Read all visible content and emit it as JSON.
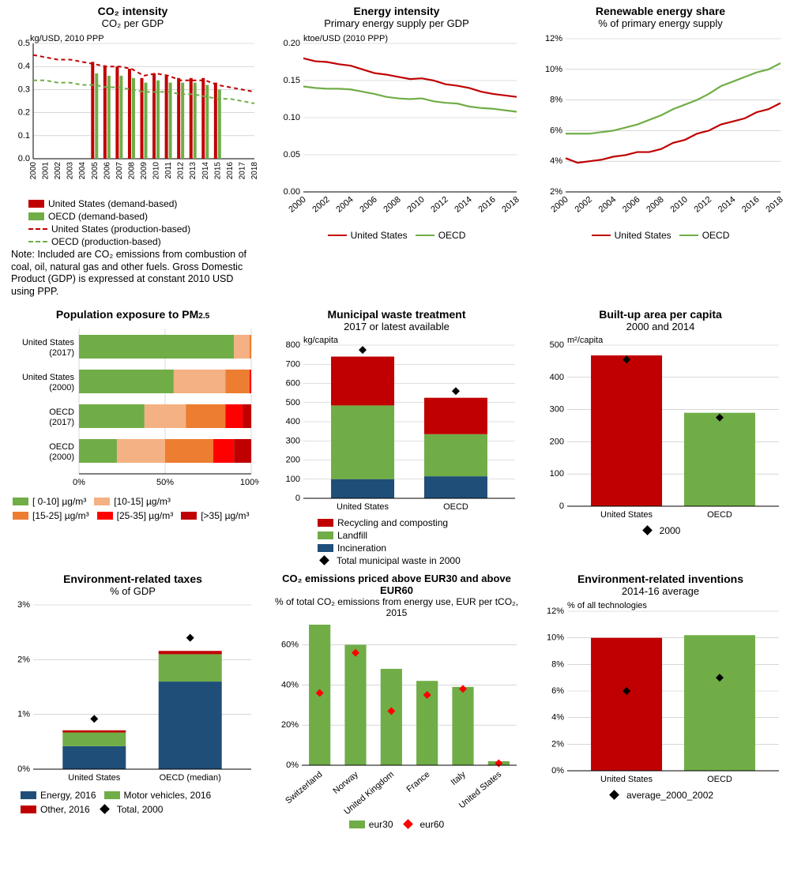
{
  "colors": {
    "us_red": "#c00000",
    "oecd_green": "#70ad47",
    "blue": "#1f4e79",
    "orange_l": "#f4b183",
    "orange_m": "#ed7d31",
    "orange_d": "#c55a11",
    "red_d": "#ff0000",
    "black": "#000000",
    "grid": "#bfbfbf",
    "bg": "#ffffff"
  },
  "years_2000_2018": [
    2000,
    2001,
    2002,
    2003,
    2004,
    2005,
    2006,
    2007,
    2008,
    2009,
    2010,
    2011,
    2012,
    2013,
    2014,
    2015,
    2016,
    2017,
    2018
  ],
  "years_even_2000_2018": [
    2000,
    2002,
    2004,
    2006,
    2008,
    2010,
    2012,
    2014,
    2016,
    2018
  ],
  "co2_intensity": {
    "title": "CO₂ intensity",
    "subtitle": "CO₂ per GDP",
    "yunit": "kg/USD, 2010 PPP",
    "ylim": [
      0,
      0.5
    ],
    "ytick_step": 0.1,
    "us_demand": [
      null,
      null,
      null,
      null,
      null,
      0.42,
      0.4,
      0.4,
      0.39,
      0.35,
      0.37,
      0.36,
      0.35,
      0.35,
      0.35,
      0.33,
      null,
      null,
      null
    ],
    "oecd_demand": [
      null,
      null,
      null,
      null,
      null,
      0.37,
      0.36,
      0.36,
      0.35,
      0.33,
      0.34,
      0.33,
      0.33,
      0.33,
      0.32,
      0.3,
      null,
      null,
      null
    ],
    "us_prod": [
      0.45,
      0.44,
      0.43,
      0.43,
      0.42,
      0.41,
      0.4,
      0.4,
      0.39,
      0.36,
      0.37,
      0.36,
      0.34,
      0.34,
      0.34,
      0.32,
      0.31,
      0.3,
      0.29
    ],
    "oecd_prod": [
      0.34,
      0.34,
      0.33,
      0.33,
      0.32,
      0.32,
      0.31,
      0.31,
      0.3,
      0.29,
      0.29,
      0.29,
      0.28,
      0.28,
      0.27,
      0.26,
      0.26,
      0.25,
      0.24
    ],
    "legend": [
      "United States (demand-based)",
      "OECD (demand-based)",
      "United States (production-based)",
      "OECD (production-based)"
    ],
    "note": "Note: Included are CO₂ emissions from combustion of coal, oil, natural gas and other fuels. Gross Domestic Product (GDP) is expressed at constant 2010 USD using PPP."
  },
  "energy_intensity": {
    "title": "Energy intensity",
    "subtitle": "Primary energy supply per GDP",
    "yunit": "ktoe/USD (2010 PPP)",
    "ylim": [
      0,
      0.2
    ],
    "ytick_step": 0.05,
    "us": [
      0.18,
      0.176,
      0.175,
      0.172,
      0.17,
      0.165,
      0.16,
      0.158,
      0.155,
      0.152,
      0.153,
      0.15,
      0.145,
      0.143,
      0.14,
      0.135,
      0.132,
      0.13,
      0.128
    ],
    "oecd": [
      0.142,
      0.14,
      0.139,
      0.139,
      0.138,
      0.135,
      0.132,
      0.128,
      0.126,
      0.125,
      0.126,
      0.122,
      0.12,
      0.119,
      0.115,
      0.113,
      0.112,
      0.11,
      0.108
    ],
    "legend": [
      "United States",
      "OECD"
    ]
  },
  "renewable_share": {
    "title": "Renewable energy share",
    "subtitle": "% of primary energy supply",
    "ylim": [
      2,
      12
    ],
    "ytick_step": 2,
    "us": [
      4.2,
      3.9,
      4.0,
      4.1,
      4.3,
      4.4,
      4.6,
      4.6,
      4.8,
      5.2,
      5.4,
      5.8,
      6.0,
      6.4,
      6.6,
      6.8,
      7.2,
      7.4,
      7.8
    ],
    "oecd": [
      5.8,
      5.8,
      5.8,
      5.9,
      6.0,
      6.2,
      6.4,
      6.7,
      7.0,
      7.4,
      7.7,
      8.0,
      8.4,
      8.9,
      9.2,
      9.5,
      9.8,
      10.0,
      10.4
    ],
    "legend": [
      "United States",
      "OECD"
    ]
  },
  "pm25": {
    "title": "Population exposure to PM",
    "title_sub": "2.5",
    "cats": [
      "United States (2017)",
      "United States (2000)",
      "OECD (2017)",
      "OECD (2000)"
    ],
    "bins": [
      "[ 0-10] µg/m³",
      "[10-15] µg/m³",
      "[15-25] µg/m³",
      "[25-35] µg/m³",
      "[>35] µg/m³"
    ],
    "data_pct": [
      [
        90,
        9,
        1,
        0,
        0
      ],
      [
        55,
        30,
        14,
        1,
        0
      ],
      [
        38,
        24,
        23,
        10,
        5
      ],
      [
        22,
        28,
        28,
        12,
        10
      ]
    ],
    "bin_colors": [
      "#70ad47",
      "#f4b183",
      "#ed7d31",
      "#ff0000",
      "#c00000"
    ],
    "xticks": [
      0,
      50,
      100
    ]
  },
  "waste": {
    "title": "Municipal waste treatment",
    "subtitle": "2017 or latest available",
    "yunit": "kg/capita",
    "ylim": [
      0,
      800
    ],
    "ytick_step": 100,
    "cats": [
      "United States",
      "OECD"
    ],
    "recycling": [
      255,
      190
    ],
    "landfill": [
      385,
      220
    ],
    "inciner": [
      100,
      115
    ],
    "total2000": [
      775,
      560
    ],
    "legend": [
      "Recycling and composting",
      "Landfill",
      "Incineration",
      "Total municipal waste in 2000"
    ]
  },
  "builtup": {
    "title": "Built-up area per capita",
    "subtitle": "2000 and 2014",
    "yunit": "m²/capita",
    "ylim": [
      0,
      500
    ],
    "ytick_step": 100,
    "cats": [
      "United States",
      "OECD"
    ],
    "v2014": [
      468,
      290
    ],
    "v2000": [
      455,
      275
    ],
    "legend_marker": "2000"
  },
  "taxes": {
    "title": "Environment-related taxes",
    "subtitle": "% of GDP",
    "ylim": [
      0,
      3
    ],
    "ytick_step": 1,
    "cats": [
      "United States",
      "OECD (median)"
    ],
    "energy": [
      0.42,
      1.6
    ],
    "motor": [
      0.25,
      0.5
    ],
    "other": [
      0.04,
      0.06
    ],
    "total2000": [
      0.92,
      2.4
    ],
    "legend": [
      "Energy, 2016",
      "Motor vehicles, 2016",
      "Other, 2016",
      "Total, 2000"
    ]
  },
  "priced": {
    "title": "CO₂ emissions priced above EUR30 and above EUR60",
    "subtitle": "% of total CO₂ emissions from energy use, EUR per tCO₂, 2015",
    "ylim": [
      0,
      70
    ],
    "ytick_step": 20,
    "cats": [
      "Switzerland",
      "Norway",
      "United Kingdom",
      "France",
      "Italy",
      "United States"
    ],
    "eur30": [
      70,
      60,
      48,
      42,
      39,
      2
    ],
    "eur60": [
      36,
      56,
      27,
      35,
      38,
      1
    ],
    "legend": [
      "eur30",
      "eur60"
    ]
  },
  "inventions": {
    "title": "Environment-related inventions",
    "subtitle": "2014-16 average",
    "yunit": "% of all technologies",
    "ylim": [
      0,
      12
    ],
    "ytick_step": 2,
    "cats": [
      "United States",
      "OECD"
    ],
    "val": [
      10.0,
      10.2
    ],
    "avg0002": [
      6.0,
      7.0
    ],
    "legend_marker": "average_2000_2002"
  }
}
